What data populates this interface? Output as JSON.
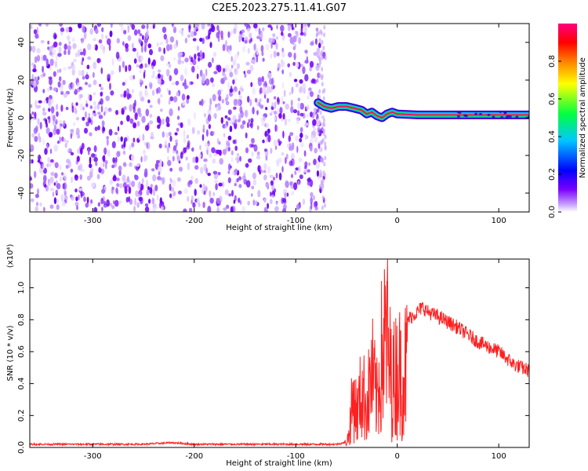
{
  "title": "C2E5.2023.275.11.41.G07",
  "chart_data": [
    {
      "type": "heatmap",
      "xlabel": "Height of straight line (km)",
      "ylabel": "Frequency (Hz)",
      "xlim": [
        -362,
        130
      ],
      "ylim": [
        -50,
        50
      ],
      "xticks": [
        -300,
        -200,
        -100,
        0,
        100
      ],
      "yticks": [
        -40,
        -20,
        0,
        20,
        40
      ],
      "noise_region_x": [
        -362,
        -72
      ],
      "noise_region_y": [
        -50,
        50
      ],
      "signal_track": {
        "x": [
          -78,
          -72,
          -65,
          -58,
          -50,
          -42,
          -35,
          -30,
          -25,
          -20,
          -15,
          -10,
          -5,
          0,
          20,
          60,
          100,
          130
        ],
        "y": [
          8,
          6,
          5,
          6,
          6,
          5,
          4,
          2,
          3,
          1,
          0,
          2,
          3,
          2,
          1.5,
          1.5,
          1.5,
          1.5
        ]
      },
      "colorbar": {
        "label": "Normalized spectral amplitude",
        "range": [
          0,
          1
        ],
        "ticks": [
          "0.0",
          "0.2",
          "0.4",
          "0.6",
          "0.8"
        ],
        "colors": [
          "#ffffff",
          "#7a00ff",
          "#0000ff",
          "#00c8ff",
          "#00ff40",
          "#ffff00",
          "#ff8000",
          "#ff0000",
          "#ff0080"
        ]
      }
    },
    {
      "type": "line",
      "xlabel": "Height of straight line (km)",
      "ylabel": "SNR (10 * v/v)",
      "y_multiplier": "(x10⁴)",
      "xlim": [
        -362,
        130
      ],
      "ylim": [
        0,
        1.18
      ],
      "xticks": [
        -300,
        -200,
        -100,
        0,
        100
      ],
      "yticks": [
        "0.0",
        "0.2",
        "0.4",
        "0.6",
        "0.8",
        "1.0"
      ],
      "color": "#ff2020",
      "series": [
        {
          "x": [
            -362,
            -300,
            -250,
            -222,
            -200,
            -150,
            -100,
            -60,
            -52,
            -48,
            -45,
            -42,
            -40,
            -35,
            -30,
            -25,
            -20,
            -15,
            -10,
            -8,
            -5,
            0,
            5,
            10,
            20,
            25,
            30,
            40,
            60,
            80,
            100,
            115,
            130
          ],
          "y": [
            0.02,
            0.02,
            0.02,
            0.03,
            0.02,
            0.02,
            0.02,
            0.02,
            0.03,
            0.1,
            0.35,
            0.5,
            0.3,
            0.55,
            0.4,
            0.7,
            0.45,
            0.9,
            1.1,
            0.8,
            0.6,
            0.75,
            0.7,
            0.8,
            0.85,
            0.88,
            0.85,
            0.82,
            0.75,
            0.66,
            0.6,
            0.52,
            0.48
          ]
        }
      ]
    }
  ]
}
